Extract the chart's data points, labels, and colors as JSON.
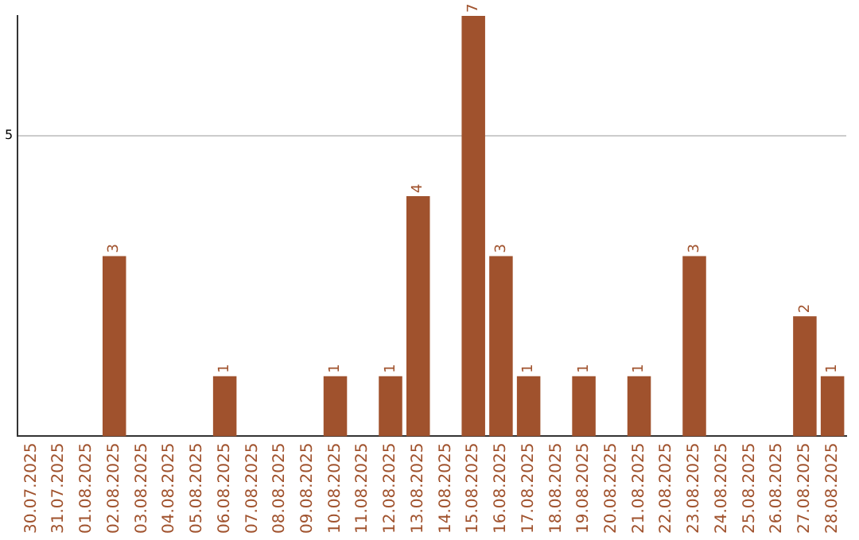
{
  "chart_data": {
    "type": "bar",
    "categories": [
      "30.07.2025",
      "31.07.2025",
      "01.08.2025",
      "02.08.2025",
      "03.08.2025",
      "04.08.2025",
      "05.08.2025",
      "06.08.2025",
      "07.08.2025",
      "08.08.2025",
      "09.08.2025",
      "10.08.2025",
      "11.08.2025",
      "12.08.2025",
      "13.08.2025",
      "14.08.2025",
      "15.08.2025",
      "16.08.2025",
      "17.08.2025",
      "18.08.2025",
      "19.08.2025",
      "20.08.2025",
      "21.08.2025",
      "22.08.2025",
      "23.08.2025",
      "24.08.2025",
      "25.08.2025",
      "26.08.2025",
      "27.08.2025",
      "28.08.2025"
    ],
    "values": [
      0,
      0,
      0,
      3,
      0,
      0,
      0,
      1,
      0,
      0,
      0,
      1,
      0,
      1,
      4,
      0,
      7,
      3,
      1,
      0,
      1,
      0,
      1,
      0,
      3,
      0,
      0,
      0,
      2,
      1
    ],
    "value_labels": [
      null,
      null,
      null,
      "3",
      null,
      null,
      null,
      "1",
      null,
      null,
      null,
      "1",
      null,
      "1",
      "4",
      null,
      "7",
      "3",
      "1",
      null,
      "1",
      null,
      "1",
      null,
      "3",
      null,
      null,
      null,
      "2",
      "1"
    ],
    "color": "#a0522d",
    "ylim": [
      0,
      7
    ],
    "yticks": [
      5
    ],
    "grid": "y",
    "legend": false
  }
}
